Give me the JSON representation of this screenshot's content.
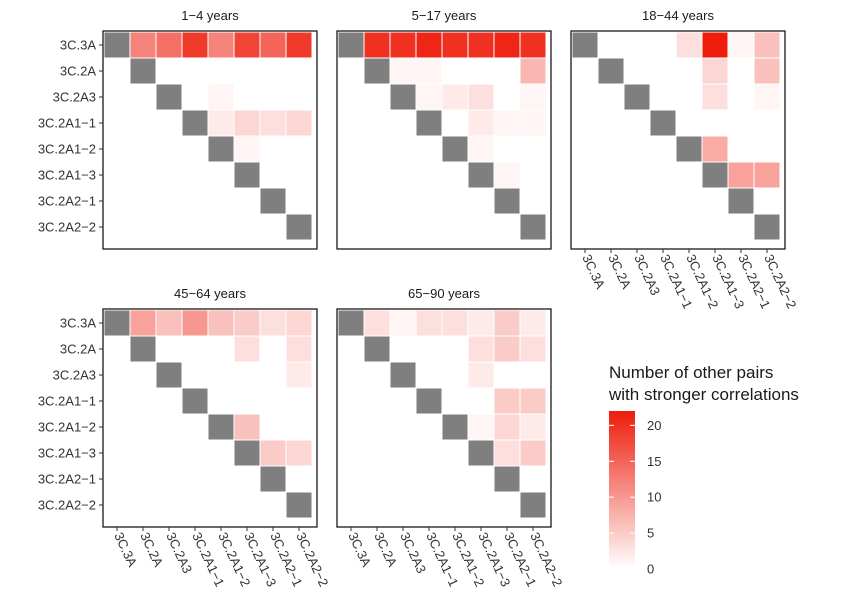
{
  "chart_data": {
    "type": "heatmap",
    "labels": [
      "3C.3A",
      "3C.2A",
      "3C.2A3",
      "3C.2A1−1",
      "3C.2A1−2",
      "3C.2A1−3",
      "3C.2A2−1",
      "3C.2A2−2"
    ],
    "diagonal_color": "#7f7f7f",
    "low_color": "#ffffff",
    "high_color": "#ee1c0b",
    "facets": [
      {
        "title": "1−4 years",
        "values": [
          [
            null,
            12,
            14,
            19,
            12,
            18,
            15,
            19
          ],
          [
            null,
            null,
            0,
            0,
            0,
            0,
            0,
            0
          ],
          [
            null,
            null,
            null,
            0,
            1,
            0,
            0,
            0
          ],
          [
            null,
            null,
            null,
            null,
            2,
            4,
            3,
            4
          ],
          [
            null,
            null,
            null,
            null,
            null,
            1,
            0,
            0
          ],
          [
            null,
            null,
            null,
            null,
            null,
            null,
            0,
            0
          ],
          [
            null,
            null,
            null,
            null,
            null,
            null,
            null,
            0
          ],
          [
            null,
            null,
            null,
            null,
            null,
            null,
            null,
            null
          ]
        ]
      },
      {
        "title": "5−17 years",
        "values": [
          [
            null,
            20,
            20,
            21,
            20,
            20,
            21,
            20
          ],
          [
            null,
            null,
            1,
            1,
            0,
            0,
            0,
            7
          ],
          [
            null,
            null,
            null,
            1,
            2,
            3,
            0,
            1
          ],
          [
            null,
            null,
            null,
            null,
            0,
            2,
            1,
            1
          ],
          [
            null,
            null,
            null,
            null,
            null,
            1,
            0,
            0
          ],
          [
            null,
            null,
            null,
            null,
            null,
            null,
            1,
            0
          ],
          [
            null,
            null,
            null,
            null,
            null,
            null,
            null,
            0
          ],
          [
            null,
            null,
            null,
            null,
            null,
            null,
            null,
            null
          ]
        ]
      },
      {
        "title": "18−44 years",
        "values": [
          [
            null,
            0,
            0,
            0,
            3,
            22,
            1,
            6
          ],
          [
            null,
            null,
            0,
            0,
            0,
            4,
            0,
            6
          ],
          [
            null,
            null,
            null,
            0,
            0,
            3,
            0,
            1
          ],
          [
            null,
            null,
            null,
            null,
            0,
            0,
            0,
            0
          ],
          [
            null,
            null,
            null,
            null,
            null,
            8,
            0,
            0
          ],
          [
            null,
            null,
            null,
            null,
            null,
            null,
            9,
            9
          ],
          [
            null,
            null,
            null,
            null,
            null,
            null,
            null,
            0
          ],
          [
            null,
            null,
            null,
            null,
            null,
            null,
            null,
            null
          ]
        ]
      },
      {
        "title": "45−64 years",
        "values": [
          [
            null,
            9,
            6,
            10,
            6,
            5,
            3,
            4
          ],
          [
            null,
            null,
            0,
            0,
            0,
            3,
            0,
            3
          ],
          [
            null,
            null,
            null,
            0,
            0,
            0,
            0,
            2
          ],
          [
            null,
            null,
            null,
            null,
            0,
            0,
            0,
            0
          ],
          [
            null,
            null,
            null,
            null,
            null,
            6,
            0,
            0
          ],
          [
            null,
            null,
            null,
            null,
            null,
            null,
            5,
            4
          ],
          [
            null,
            null,
            null,
            null,
            null,
            null,
            null,
            0
          ],
          [
            null,
            null,
            null,
            null,
            null,
            null,
            null,
            null
          ]
        ]
      },
      {
        "title": "65−90 years",
        "values": [
          [
            null,
            3,
            1,
            3,
            3,
            2,
            5,
            2
          ],
          [
            null,
            null,
            0,
            0,
            0,
            3,
            5,
            3
          ],
          [
            null,
            null,
            null,
            0,
            0,
            2,
            0,
            0
          ],
          [
            null,
            null,
            null,
            null,
            0,
            0,
            5,
            5
          ],
          [
            null,
            null,
            null,
            null,
            null,
            1,
            4,
            2
          ],
          [
            null,
            null,
            null,
            null,
            null,
            null,
            3,
            5
          ],
          [
            null,
            null,
            null,
            null,
            null,
            null,
            null,
            0
          ],
          [
            null,
            null,
            null,
            null,
            null,
            null,
            null,
            null
          ]
        ]
      }
    ],
    "legend": {
      "title_line1": "Number of other pairs",
      "title_line2": "with stronger correlations",
      "ticks": [
        20,
        15,
        10,
        5,
        0
      ],
      "min": 0,
      "max": 22
    }
  }
}
